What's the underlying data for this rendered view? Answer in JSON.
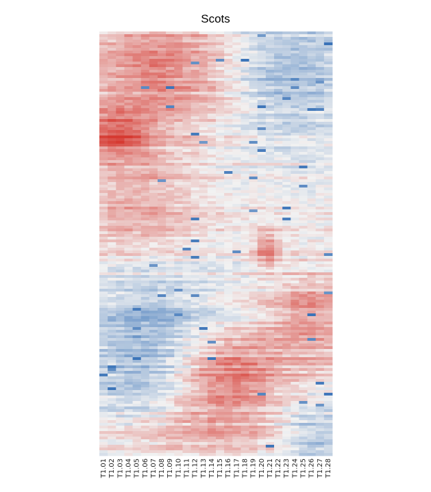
{
  "chart_data": {
    "type": "heatmap",
    "title": "Scots",
    "xlabel": "",
    "ylabel": "",
    "columns": [
      "T1.01",
      "T1.02",
      "T1.03",
      "T1.04",
      "T1.05",
      "T1.06",
      "T1.07",
      "T1.08",
      "T1.09",
      "T1.10",
      "T1.11",
      "T1.12",
      "T1.13",
      "T1.14",
      "T1.15",
      "T1.16",
      "T1.17",
      "T1.18",
      "T1.19",
      "T1.20",
      "T1.21",
      "T1.22",
      "T1.23",
      "T1.24",
      "T1.25",
      "T1.26",
      "T1.27",
      "T1.28"
    ],
    "row_tick_labels": "none",
    "colorscale": {
      "low": "#3a73b8",
      "mid": "#f2f2f2",
      "high": "#d63a32"
    },
    "value_range": [
      -1,
      1
    ],
    "legend": "none",
    "grid": false
  }
}
